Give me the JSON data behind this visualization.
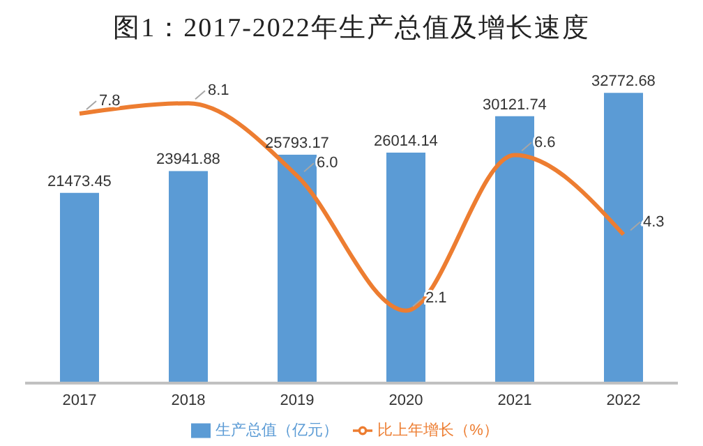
{
  "chart_data": {
    "type": "bar",
    "title": "图1：2017-2022年生产总值及增长速度",
    "categories": [
      "2017",
      "2018",
      "2019",
      "2020",
      "2021",
      "2022"
    ],
    "series": [
      {
        "name": "生产总值（亿元）",
        "color": "#5b9bd5",
        "values": [
          21473.45,
          23941.88,
          25793.17,
          26014.14,
          30121.74,
          32772.68
        ]
      },
      {
        "name": "比上年增长（%）",
        "type": "line",
        "axis": "y2",
        "color": "#ed7d31",
        "values": [
          7.8,
          8.1,
          6.0,
          2.1,
          6.6,
          4.3
        ],
        "value_labels": [
          "7.8",
          "8.1",
          "6.0",
          "2.1",
          "6.6",
          "4.3"
        ]
      }
    ],
    "tick_labels": "x",
    "legend": "bottom",
    "data_labels": true,
    "marker": "none"
  }
}
